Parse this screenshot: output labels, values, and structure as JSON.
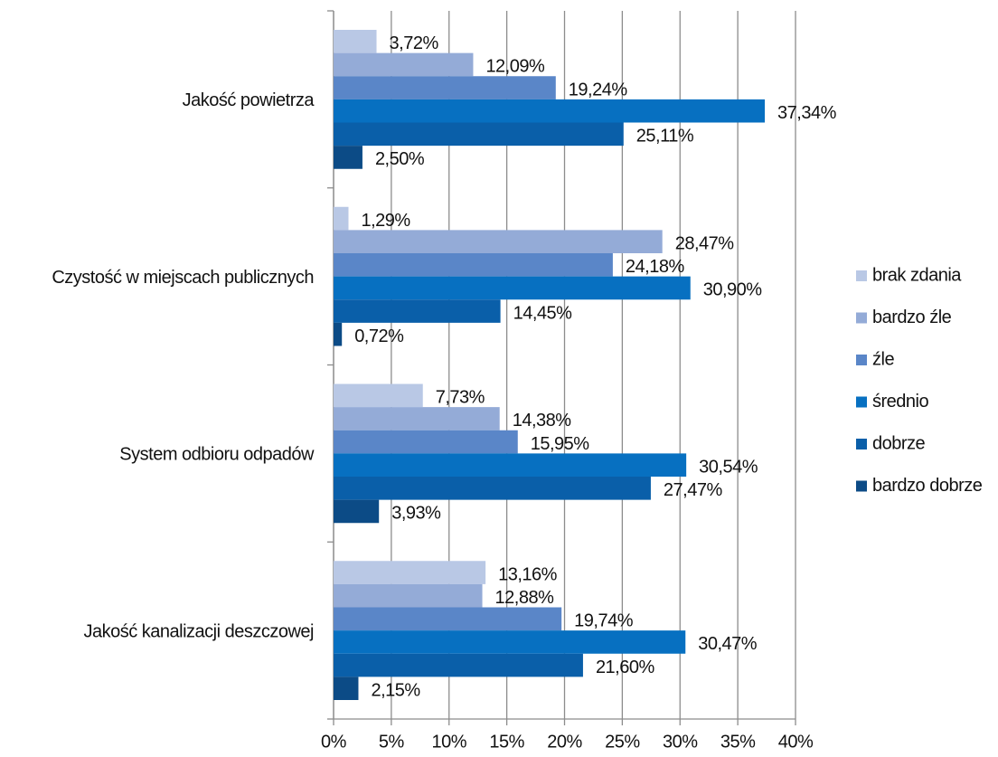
{
  "chart_data": {
    "type": "bar",
    "orientation": "horizontal",
    "categories": [
      "Jakość powietrza",
      "Czystość w miejscach publicznych",
      "System odbioru odpadów",
      "Jakość kanalizacji deszczowej"
    ],
    "series": [
      {
        "name": "brak zdania",
        "color": "#b9c8e5",
        "values": [
          3.72,
          1.29,
          7.73,
          13.16
        ],
        "value_labels": [
          "3,72%",
          "1,29%",
          "7,73%",
          "13,16%"
        ]
      },
      {
        "name": "bardzo źle",
        "color": "#94abd7",
        "values": [
          12.09,
          28.47,
          14.38,
          12.88
        ],
        "value_labels": [
          "12,09%",
          "28,47%",
          "14,38%",
          "12,88%"
        ]
      },
      {
        "name": "źle",
        "color": "#5a86c8",
        "values": [
          19.24,
          24.18,
          15.95,
          19.74
        ],
        "value_labels": [
          "19,24%",
          "24,18%",
          "15,95%",
          "19,74%"
        ]
      },
      {
        "name": "średnio",
        "color": "#0770c1",
        "values": [
          37.34,
          30.9,
          30.54,
          30.47
        ],
        "value_labels": [
          "37,34%",
          "30,90%",
          "30,54%",
          "30,47%"
        ]
      },
      {
        "name": "dobrze",
        "color": "#0a5fa9",
        "values": [
          25.11,
          14.45,
          27.47,
          21.6
        ],
        "value_labels": [
          "25,11%",
          "14,45%",
          "27,47%",
          "21,60%"
        ]
      },
      {
        "name": "bardzo dobrze",
        "color": "#0c4b86",
        "values": [
          2.5,
          0.72,
          3.93,
          2.15
        ],
        "value_labels": [
          "2,50%",
          "0,72%",
          "3,93%",
          "2,15%"
        ]
      }
    ],
    "xlim": [
      0,
      40
    ],
    "xticks": [
      {
        "value": 0,
        "label": "0%"
      },
      {
        "value": 5,
        "label": "5%"
      },
      {
        "value": 10,
        "label": "10%"
      },
      {
        "value": 15,
        "label": "15%"
      },
      {
        "value": 20,
        "label": "20%"
      },
      {
        "value": 25,
        "label": "25%"
      },
      {
        "value": 30,
        "label": "30%"
      },
      {
        "value": 35,
        "label": "35%"
      },
      {
        "value": 40,
        "label": "40%"
      }
    ],
    "grid": true,
    "legend": "right"
  }
}
